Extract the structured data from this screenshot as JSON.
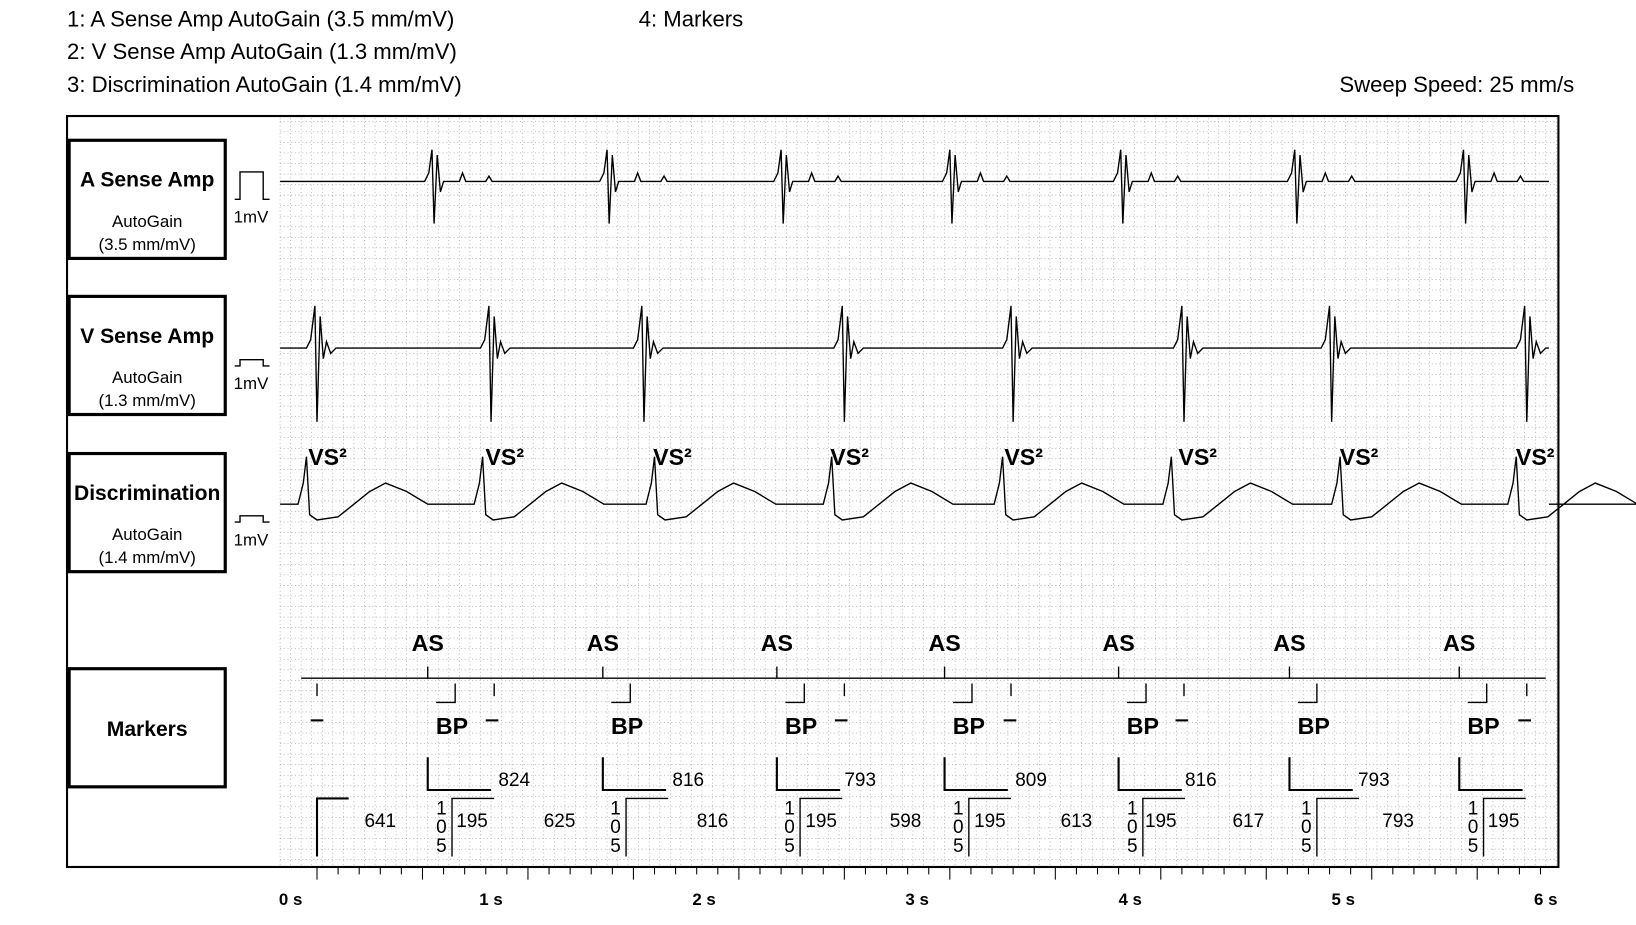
{
  "header": {
    "channels": [
      "1:  A Sense Amp   AutoGain (3.5 mm/mV)",
      "2:  V Sense Amp   AutoGain (1.3 mm/mV)",
      "3:  Discrimination   AutoGain (1.4 mm/mV)"
    ],
    "markers_channel": "4:  Markers",
    "sweep_speed": "Sweep Speed: 25 mm/s"
  },
  "panels": [
    {
      "title": "A Sense Amp",
      "gain": "AutoGain",
      "gain_value": "(3.5 mm/mV)",
      "scale": "1mV"
    },
    {
      "title": "V Sense Amp",
      "gain": "AutoGain",
      "gain_value": "(1.3 mm/mV)",
      "scale": "1mV"
    },
    {
      "title": "Discrimination",
      "gain": "AutoGain",
      "gain_value": "(1.4 mm/mV)",
      "scale": "1mV"
    }
  ],
  "markers_panel": {
    "title": "Markers"
  },
  "vs_labels": [
    "VS²",
    "VS²",
    "VS²",
    "VS²",
    "VS²",
    "VS²",
    "VS²",
    "VS²"
  ],
  "as_labels": [
    "AS",
    "AS",
    "AS",
    "AS",
    "AS",
    "AS",
    "AS"
  ],
  "bp_labels": [
    "BP",
    "BP",
    "BP",
    "BP",
    "BP",
    "BP",
    "BP"
  ],
  "upper_intervals": [
    "824",
    "816",
    "793",
    "809",
    "816",
    "793"
  ],
  "lower_intervals": [
    "641",
    "105",
    "195",
    "625",
    "105",
    "816",
    "105",
    "195",
    "598",
    "105",
    "195",
    "613",
    "105",
    "195",
    "617",
    "105",
    "793",
    "105",
    "195"
  ],
  "time_axis": [
    "0 s",
    "1 s",
    "2 s",
    "3 s",
    "4 s",
    "5 s",
    "6 s"
  ]
}
